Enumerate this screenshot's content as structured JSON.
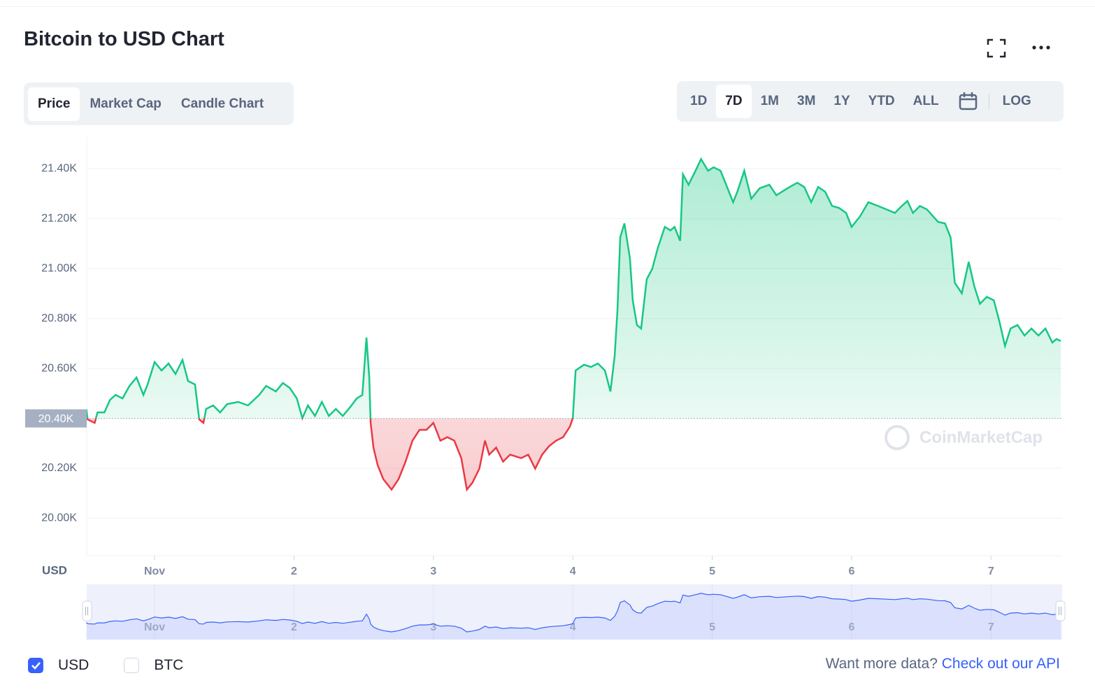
{
  "header": {
    "title": "Bitcoin to USD Chart"
  },
  "tabs": [
    "Price",
    "Market Cap",
    "Candle Chart"
  ],
  "active_tab": 0,
  "ranges": [
    "1D",
    "7D",
    "1M",
    "3M",
    "1Y",
    "YTD",
    "ALL"
  ],
  "active_range": 1,
  "log": "LOG",
  "watermark": "CoinMarketCap",
  "currencies": [
    {
      "label": "USD",
      "checked": true
    },
    {
      "label": "BTC",
      "checked": false
    }
  ],
  "footer": {
    "prompt": "Want more data?",
    "link": "Check out our API"
  },
  "chart_data": {
    "type": "line",
    "y_label": "USD",
    "xlim": [
      0.513,
      7.51
    ],
    "xticks": [
      {
        "value": 1,
        "label": "Nov"
      },
      2,
      3,
      4,
      5,
      6,
      7
    ],
    "ylim": [
      19850,
      21530
    ],
    "yticks": [
      {
        "value": 20000,
        "label": "20.00K"
      },
      {
        "value": 20200,
        "label": "20.20K"
      },
      {
        "value": 20600,
        "label": "20.60K"
      },
      {
        "value": 20800,
        "label": "20.80K"
      },
      {
        "value": 21000,
        "label": "21.00K"
      },
      {
        "value": 21200,
        "label": "21.20K"
      },
      {
        "value": 21400,
        "label": "21.40K"
      }
    ],
    "baseline": {
      "value": 20400,
      "label": "20.40K"
    },
    "grid": true,
    "colors": {
      "up": "#16c784",
      "down": "#ea3943",
      "navigator": "#3861fb"
    },
    "x": [
      0.51,
      0.52,
      0.57,
      0.59,
      0.64,
      0.68,
      0.72,
      0.77,
      0.82,
      0.87,
      0.92,
      0.95,
      1.0,
      1.05,
      1.1,
      1.15,
      1.2,
      1.24,
      1.29,
      1.32,
      1.35,
      1.37,
      1.42,
      1.47,
      1.52,
      1.6,
      1.67,
      1.75,
      1.8,
      1.87,
      1.92,
      1.97,
      2.02,
      2.06,
      2.1,
      2.15,
      2.2,
      2.25,
      2.3,
      2.35,
      2.4,
      2.45,
      2.49,
      2.52,
      2.54,
      2.55,
      2.57,
      2.6,
      2.64,
      2.7,
      2.75,
      2.8,
      2.85,
      2.9,
      2.95,
      3.0,
      3.05,
      3.1,
      3.15,
      3.2,
      3.24,
      3.28,
      3.33,
      3.37,
      3.4,
      3.45,
      3.5,
      3.55,
      3.63,
      3.68,
      3.73,
      3.78,
      3.83,
      3.88,
      3.93,
      3.98,
      4.0,
      4.02,
      4.08,
      4.13,
      4.18,
      4.23,
      4.27,
      4.3,
      4.32,
      4.34,
      4.37,
      4.41,
      4.43,
      4.46,
      4.49,
      4.53,
      4.57,
      4.61,
      4.66,
      4.7,
      4.73,
      4.77,
      4.79,
      4.83,
      4.88,
      4.92,
      4.97,
      5.01,
      5.06,
      5.11,
      5.15,
      5.18,
      5.23,
      5.28,
      5.34,
      5.41,
      5.46,
      5.54,
      5.61,
      5.66,
      5.71,
      5.76,
      5.81,
      5.86,
      5.91,
      5.96,
      6.0,
      6.06,
      6.12,
      6.19,
      6.25,
      6.31,
      6.36,
      6.4,
      6.44,
      6.49,
      6.54,
      6.62,
      6.67,
      6.71,
      6.74,
      6.79,
      6.84,
      6.88,
      6.92,
      6.97,
      7.02,
      7.06,
      7.1,
      7.14,
      7.19,
      7.24,
      7.29,
      7.34,
      7.39,
      7.44,
      7.47,
      7.5
    ],
    "values": [
      20438,
      20396,
      20382,
      20424,
      20424,
      20474,
      20494,
      20480,
      20530,
      20564,
      20494,
      20536,
      20626,
      20592,
      20620,
      20578,
      20634,
      20550,
      20536,
      20396,
      20382,
      20438,
      20452,
      20424,
      20457,
      20466,
      20452,
      20494,
      20530,
      20508,
      20542,
      20522,
      20480,
      20401,
      20452,
      20410,
      20466,
      20410,
      20438,
      20410,
      20443,
      20480,
      20494,
      20724,
      20564,
      20382,
      20283,
      20213,
      20157,
      20115,
      20157,
      20227,
      20311,
      20354,
      20354,
      20382,
      20311,
      20325,
      20311,
      20241,
      20115,
      20143,
      20199,
      20311,
      20255,
      20283,
      20227,
      20255,
      20241,
      20255,
      20199,
      20255,
      20289,
      20311,
      20325,
      20368,
      20401,
      20592,
      20615,
      20606,
      20620,
      20592,
      20508,
      20648,
      20831,
      21125,
      21181,
      21041,
      20873,
      20774,
      20760,
      20957,
      20999,
      21083,
      21167,
      21153,
      21167,
      21111,
      21378,
      21336,
      21392,
      21439,
      21392,
      21406,
      21392,
      21322,
      21266,
      21308,
      21392,
      21280,
      21322,
      21336,
      21294,
      21322,
      21344,
      21327,
      21266,
      21327,
      21308,
      21251,
      21243,
      21223,
      21167,
      21209,
      21266,
      21251,
      21237,
      21223,
      21251,
      21271,
      21223,
      21251,
      21237,
      21187,
      21181,
      21125,
      20943,
      20901,
      21027,
      20929,
      20859,
      20887,
      20873,
      20788,
      20690,
      20760,
      20774,
      20732,
      20760,
      20732,
      20760,
      20704,
      20718,
      20710
    ]
  }
}
